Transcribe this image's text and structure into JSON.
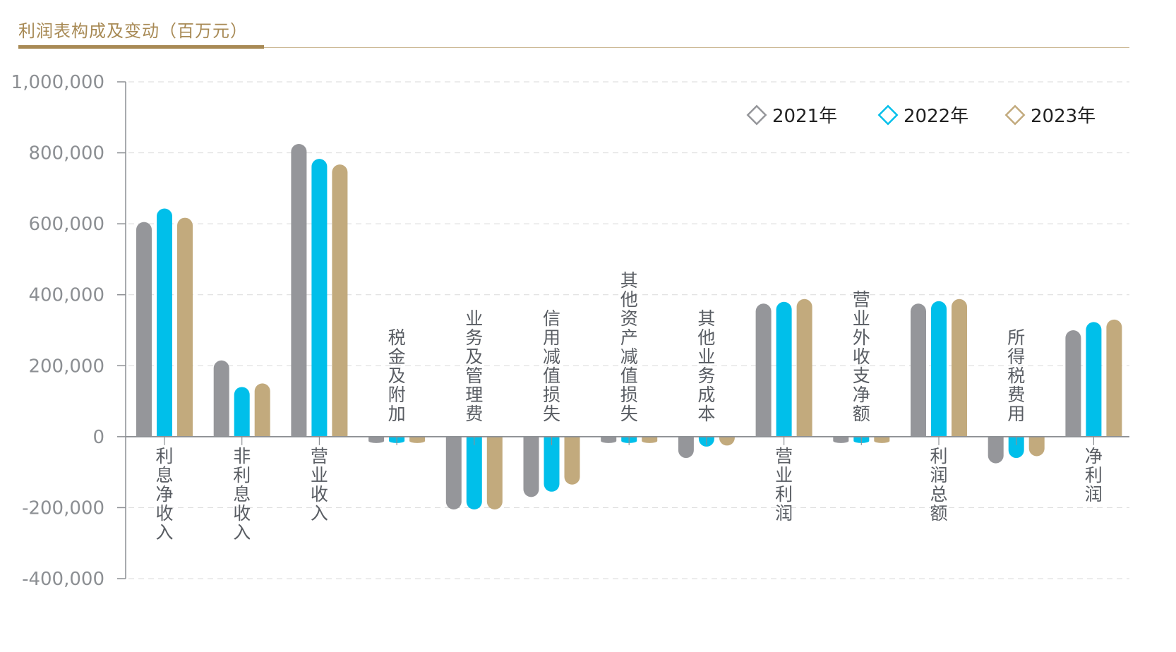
{
  "header": {
    "title": "利润表构成及变动（百万元）"
  },
  "colors": {
    "2021年": "#95969a",
    "2022年": "#00bfea",
    "2023年": "#c2aa7d",
    "accent": "#a88a55"
  },
  "chart_data": {
    "type": "bar",
    "title": "利润表构成及变动（百万元）",
    "categories": [
      "利息净收入",
      "非利息收入",
      "营业收入",
      "税金及附加",
      "业务及管理费",
      "信用减值损失",
      "其他资产减值损失",
      "其他业务成本",
      "营业利润",
      "营业外收支净额",
      "利润总额",
      "所得税费用",
      "净利润"
    ],
    "series": [
      {
        "name": "2021年",
        "values": [
          605000,
          215000,
          825000,
          -10000,
          -205000,
          -170000,
          -3000,
          -60000,
          375000,
          -1000,
          375000,
          -75000,
          300000
        ]
      },
      {
        "name": "2022年",
        "values": [
          643000,
          140000,
          783000,
          -10000,
          -205000,
          -155000,
          -3000,
          -28000,
          380000,
          -1000,
          382000,
          -60000,
          323000
        ]
      },
      {
        "name": "2023年",
        "values": [
          617000,
          150000,
          767000,
          -10000,
          -205000,
          -135000,
          -2000,
          -25000,
          388000,
          -1000,
          388000,
          -55000,
          330000
        ]
      }
    ],
    "yticks": [
      "1,000,000",
      "800,000",
      "600,000",
      "400,000",
      "200,000",
      "0",
      "-200,000",
      "-400,000"
    ],
    "ylim": [
      -400000,
      1000000
    ],
    "grid": true,
    "legend": "top-right",
    "xlabel": "",
    "ylabel": ""
  }
}
